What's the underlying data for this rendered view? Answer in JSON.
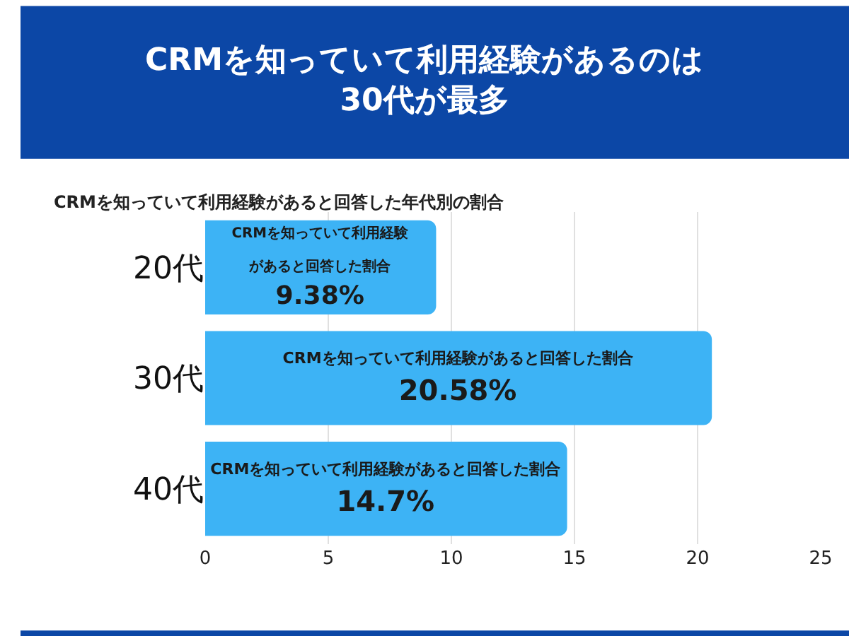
{
  "chart_data": {
    "type": "bar",
    "orientation": "horizontal",
    "title": "CRMを知っていて利用経験があるのは\n30代が最多",
    "subtitle": "CRMを知っていて利用経験があると回答した年代別の割合",
    "categories": [
      "20代",
      "30代",
      "40代"
    ],
    "series": [
      {
        "name": "CRMを知っていて利用経験があると回答した割合",
        "color": "#3db3f5",
        "values": [
          9.38,
          20.58,
          14.7
        ]
      }
    ],
    "value_labels": [
      "9.38%",
      "20.58%",
      "14.7%"
    ],
    "xlim": [
      0,
      25
    ],
    "xticks": [
      0,
      5,
      10,
      15,
      20,
      25
    ],
    "grid": "x",
    "legend": false
  }
}
